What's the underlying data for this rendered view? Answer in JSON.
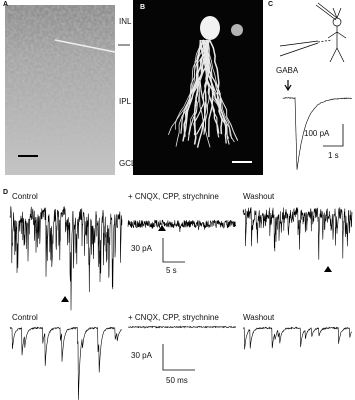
{
  "panels": {
    "a": {
      "label": "A",
      "layers": [
        "INL",
        "IPL",
        "GCL"
      ]
    },
    "b": {
      "label": "B"
    },
    "c": {
      "label": "C",
      "stimulus": "GABA",
      "scale_y": "100 pA",
      "scale_x": "1 s"
    },
    "d": {
      "label": "D",
      "rows": [
        {
          "conditions": [
            "Control",
            "+ CNQX, CPP, strychnine",
            "Washout"
          ],
          "scale_y": "30 pA",
          "scale_x": "5 s"
        },
        {
          "conditions": [
            "Control",
            "+ CNQX, CPP, strychnine",
            "Washout"
          ],
          "scale_y": "30 pA",
          "scale_x": "50 ms"
        }
      ]
    }
  }
}
